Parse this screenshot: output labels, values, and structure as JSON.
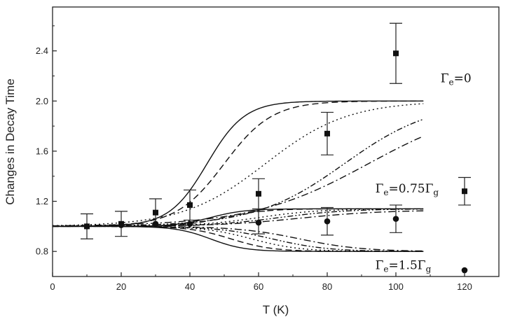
{
  "chart_data": {
    "type": "scatter",
    "title": "",
    "xlabel": "T (K)",
    "ylabel": "Changes in Decay Time",
    "xlim": [
      0,
      130
    ],
    "ylim": [
      0.6,
      2.75
    ],
    "x_ticks": [
      0,
      20,
      40,
      60,
      80,
      100,
      120
    ],
    "y_ticks": [
      0.8,
      1.2,
      1.6,
      2.0,
      2.4
    ],
    "x_tick_labels": [
      "0",
      "20",
      "40",
      "60",
      "80",
      "100",
      "120"
    ],
    "y_tick_labels": [
      "0.8",
      "1.2",
      "1.6",
      "2.0",
      "2.4"
    ],
    "grid": false,
    "series": [
      {
        "marker": "square",
        "points": [
          {
            "x": 10,
            "y": 1.0,
            "err": 0.1
          },
          {
            "x": 20,
            "y": 1.02,
            "err": 0.1
          },
          {
            "x": 30,
            "y": 1.11,
            "err": 0.11
          },
          {
            "x": 40,
            "y": 1.17,
            "err": 0.12
          },
          {
            "x": 60,
            "y": 1.26,
            "err": 0.12
          },
          {
            "x": 80,
            "y": 1.74,
            "err": 0.17
          },
          {
            "x": 100,
            "y": 2.38,
            "err": 0.24
          },
          {
            "x": 120,
            "y": 1.28,
            "err": 0.11
          }
        ]
      },
      {
        "marker": "circle",
        "points": [
          {
            "x": 10,
            "y": 1.0
          },
          {
            "x": 20,
            "y": 1.01
          },
          {
            "x": 30,
            "y": 1.02
          },
          {
            "x": 40,
            "y": 1.02
          },
          {
            "x": 60,
            "y": 1.03,
            "err": 0.09
          },
          {
            "x": 80,
            "y": 1.04,
            "err": 0.11
          },
          {
            "x": 100,
            "y": 1.06,
            "err": 0.11
          },
          {
            "x": 120,
            "y": 0.65
          }
        ]
      }
    ],
    "curves": [
      {
        "group": "upper",
        "style": "solid",
        "ymax": 2.0,
        "t0": 45,
        "w": 5.5
      },
      {
        "group": "upper",
        "style": "dashed",
        "ymax": 2.0,
        "t0": 50,
        "w": 7
      },
      {
        "group": "upper",
        "style": "dotted",
        "ymax": 2.0,
        "t0": 62,
        "w": 12
      },
      {
        "group": "upper",
        "style": "dashdotdot",
        "ymax": 2.0,
        "t0": 85,
        "w": 13
      },
      {
        "group": "upper",
        "style": "dashdot",
        "ymax": 2.0,
        "t0": 92,
        "w": 17
      },
      {
        "group": "middle",
        "style": "solid",
        "ymax": 1.14,
        "t0": 46,
        "w": 5
      },
      {
        "group": "middle",
        "style": "dashed",
        "ymax": 1.14,
        "t0": 50,
        "w": 6
      },
      {
        "group": "middle",
        "style": "dotted",
        "ymax": 1.14,
        "t0": 60,
        "w": 9
      },
      {
        "group": "middle",
        "style": "dashdotdot",
        "ymax": 1.14,
        "t0": 66,
        "w": 10
      },
      {
        "group": "middle",
        "style": "dashdot",
        "ymax": 1.13,
        "t0": 72,
        "w": 12
      },
      {
        "group": "lower",
        "style": "solid",
        "ymax": 0.8,
        "t0": 46,
        "w": 5
      },
      {
        "group": "lower",
        "style": "dashed",
        "ymax": 0.8,
        "t0": 52,
        "w": 6
      },
      {
        "group": "lower",
        "style": "dotted",
        "ymax": 0.8,
        "t0": 58,
        "w": 7
      },
      {
        "group": "lower",
        "style": "dashdotdot",
        "ymax": 0.8,
        "t0": 64,
        "w": 8
      },
      {
        "group": "lower",
        "style": "dashdot",
        "ymax": 0.8,
        "t0": 72,
        "w": 9
      }
    ],
    "curve_x_range": [
      0,
      108
    ],
    "annotations": [
      {
        "main": "Γ",
        "sub": "e",
        "tail": "=0",
        "x": 113,
        "y": 2.15
      },
      {
        "main": "Γ",
        "sub": "e",
        "tail": "=0.75Γ",
        "tail_sub": "g",
        "x": 94,
        "y": 1.27
      },
      {
        "main": "Γ",
        "sub": "e",
        "tail": "=1.5Γ",
        "tail_sub": "g",
        "x": 94,
        "y": 0.66
      }
    ]
  }
}
